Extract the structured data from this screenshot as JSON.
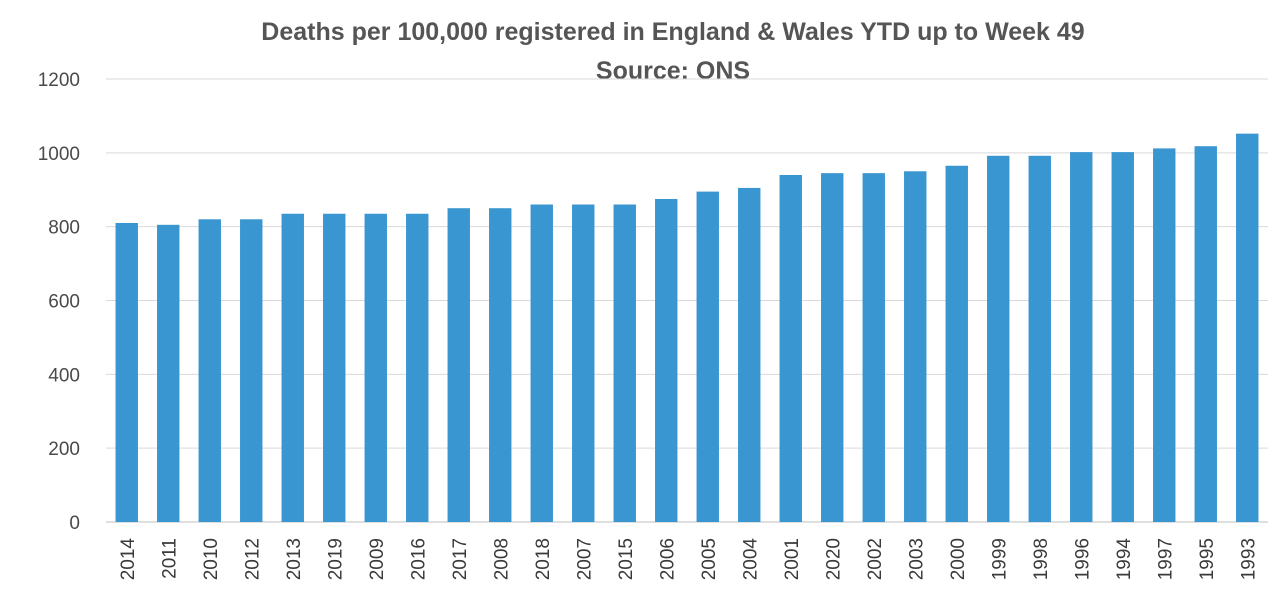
{
  "chart_data": {
    "type": "bar",
    "title": "Deaths per 100,000 registered in England & Wales YTD up to Week 49",
    "subtitle": "Source: ONS",
    "xlabel": "",
    "ylabel": "",
    "ylim": [
      0,
      1200
    ],
    "yticks": [
      0,
      200,
      400,
      600,
      800,
      1000,
      1200
    ],
    "grid": true,
    "legend": "none",
    "bar_color": "#3A96D1",
    "categories": [
      "2014",
      "2011",
      "2010",
      "2012",
      "2013",
      "2019",
      "2009",
      "2016",
      "2017",
      "2008",
      "2018",
      "2007",
      "2015",
      "2006",
      "2005",
      "2004",
      "2001",
      "2020",
      "2002",
      "2003",
      "2000",
      "1999",
      "1998",
      "1996",
      "1994",
      "1997",
      "1995",
      "1993"
    ],
    "values": [
      810,
      805,
      820,
      820,
      835,
      835,
      835,
      835,
      850,
      850,
      860,
      860,
      860,
      875,
      895,
      905,
      940,
      945,
      945,
      950,
      965,
      992,
      992,
      1002,
      1002,
      1012,
      1018,
      1052
    ]
  }
}
